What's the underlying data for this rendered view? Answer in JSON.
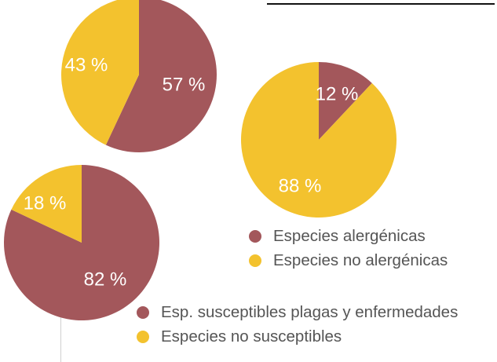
{
  "colors": {
    "alergenica": "#a3575b",
    "no_alergenica": "#f3c22e",
    "label": "#ffffff",
    "legend_text": "#555555"
  },
  "chart_data": [
    {
      "type": "pie",
      "slices": [
        {
          "category": "alergenica",
          "value": 57,
          "label": "57 %"
        },
        {
          "category": "no_alergenica",
          "value": 43,
          "label": "43 %"
        }
      ]
    },
    {
      "type": "pie",
      "slices": [
        {
          "category": "alergenica",
          "value": 12,
          "label": "12 %"
        },
        {
          "category": "no_alergenica",
          "value": 88,
          "label": "88 %"
        }
      ]
    },
    {
      "type": "pie",
      "slices": [
        {
          "category": "alergenica",
          "value": 82,
          "label": "82 %"
        },
        {
          "category": "no_alergenica",
          "value": 18,
          "label": "18 %"
        }
      ]
    }
  ],
  "legends": {
    "legend_a": [
      {
        "label": "Especies alergénicas",
        "color": "#a3575b"
      },
      {
        "label": "Especies no alergénicas",
        "color": "#f3c22e"
      }
    ],
    "legend_b": [
      {
        "label": "Esp. susceptibles plagas y enfermedades",
        "color": "#a3575b"
      },
      {
        "label": "Especies no susceptibles",
        "color": "#f3c22e"
      }
    ]
  }
}
